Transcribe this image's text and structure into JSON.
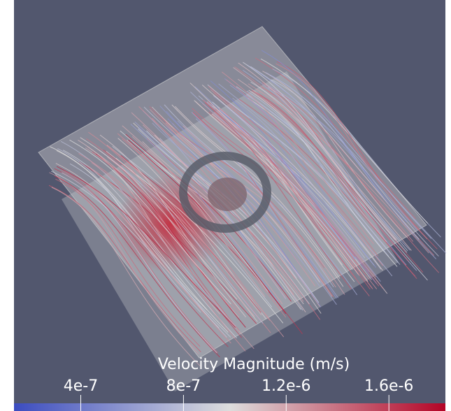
{
  "colorbar": {
    "title": "Velocity Magnitude (m/s)",
    "range": [
      1.4e-07,
      1.82e-06
    ],
    "ticks": [
      {
        "value": 4e-07,
        "label": "4e-7"
      },
      {
        "value": 8e-07,
        "label": "8e-7"
      },
      {
        "value": 1.2e-06,
        "label": "1.2e-6"
      },
      {
        "value": 1.6e-06,
        "label": "1.6e-6"
      }
    ],
    "colors": [
      "#3b4cc0",
      "#dddddd",
      "#b40426"
    ]
  }
}
